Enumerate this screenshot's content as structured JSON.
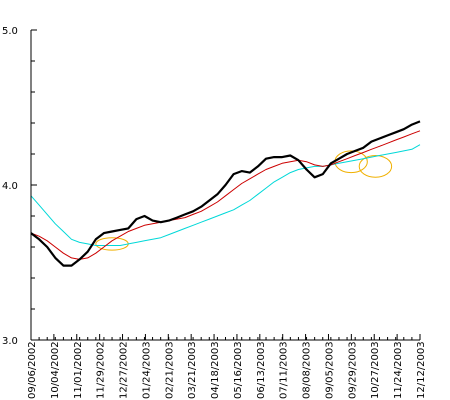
{
  "chart_data": {
    "type": "line",
    "title": "",
    "xlabel": "",
    "ylabel": "",
    "ylim": [
      3.0,
      5.0
    ],
    "grid": false,
    "legend": "none",
    "y_ticks": [
      "3.0",
      "4.0",
      "5.0"
    ],
    "x_tick_labels": [
      "09/06/2002",
      "10/04/2002",
      "11/01/2002",
      "11/29/2002",
      "12/27/2002",
      "01/24/2003",
      "02/21/2003",
      "03/21/2003",
      "04/18/2003",
      "05/16/2003",
      "06/13/2003",
      "07/11/2003",
      "08/08/2003",
      "09/05/2003",
      "09/29/2003",
      "10/27/2003",
      "11/24/2003",
      "12/12/2003"
    ],
    "series": [
      {
        "color": "#000000",
        "values": [
          3.69,
          3.65,
          3.6,
          3.53,
          3.48,
          3.48,
          3.52,
          3.57,
          3.65,
          3.69,
          3.7,
          3.71,
          3.72,
          3.78,
          3.8,
          3.77,
          3.76,
          3.77,
          3.79,
          3.81,
          3.83,
          3.86,
          3.9,
          3.94,
          4.0,
          4.07,
          4.09,
          4.08,
          4.12,
          4.17,
          4.18,
          4.18,
          4.19,
          4.16,
          4.1,
          4.05,
          4.07,
          4.14,
          4.17,
          4.2,
          4.22,
          4.24,
          4.28,
          4.3,
          4.32,
          4.34,
          4.36,
          4.39,
          4.41
        ]
      },
      {
        "color": "#cc0000",
        "values": [
          3.69,
          3.67,
          3.64,
          3.6,
          3.56,
          3.53,
          3.52,
          3.53,
          3.56,
          3.6,
          3.64,
          3.67,
          3.7,
          3.72,
          3.74,
          3.75,
          3.76,
          3.77,
          3.78,
          3.79,
          3.81,
          3.83,
          3.86,
          3.89,
          3.93,
          3.97,
          4.01,
          4.04,
          4.07,
          4.1,
          4.12,
          4.14,
          4.15,
          4.16,
          4.15,
          4.13,
          4.12,
          4.13,
          4.15,
          4.17,
          4.19,
          4.21,
          4.23,
          4.25,
          4.27,
          4.29,
          4.31,
          4.33,
          4.35
        ]
      },
      {
        "color": "#00d8d8",
        "values": [
          3.93,
          3.87,
          3.81,
          3.75,
          3.7,
          3.65,
          3.63,
          3.62,
          3.61,
          3.61,
          3.61,
          3.61,
          3.62,
          3.63,
          3.64,
          3.65,
          3.66,
          3.68,
          3.7,
          3.72,
          3.74,
          3.76,
          3.78,
          3.8,
          3.82,
          3.84,
          3.87,
          3.9,
          3.94,
          3.98,
          4.02,
          4.05,
          4.08,
          4.1,
          4.11,
          4.12,
          4.12,
          4.13,
          4.14,
          4.15,
          4.16,
          4.17,
          4.18,
          4.19,
          4.2,
          4.21,
          4.22,
          4.23,
          4.26
        ]
      }
    ],
    "annotations": [
      {
        "shape": "ellipse",
        "color": "#f0b000",
        "cx_index": 10,
        "cy": 3.62,
        "rx_points": 2,
        "ry_value": 0.04
      },
      {
        "shape": "ellipse",
        "color": "#f0b000",
        "cx_index": 39.5,
        "cy": 4.15,
        "rx_points": 2,
        "ry_value": 0.07
      },
      {
        "shape": "ellipse",
        "color": "#f0b000",
        "cx_index": 42.5,
        "cy": 4.12,
        "rx_points": 2,
        "ry_value": 0.07
      }
    ]
  }
}
